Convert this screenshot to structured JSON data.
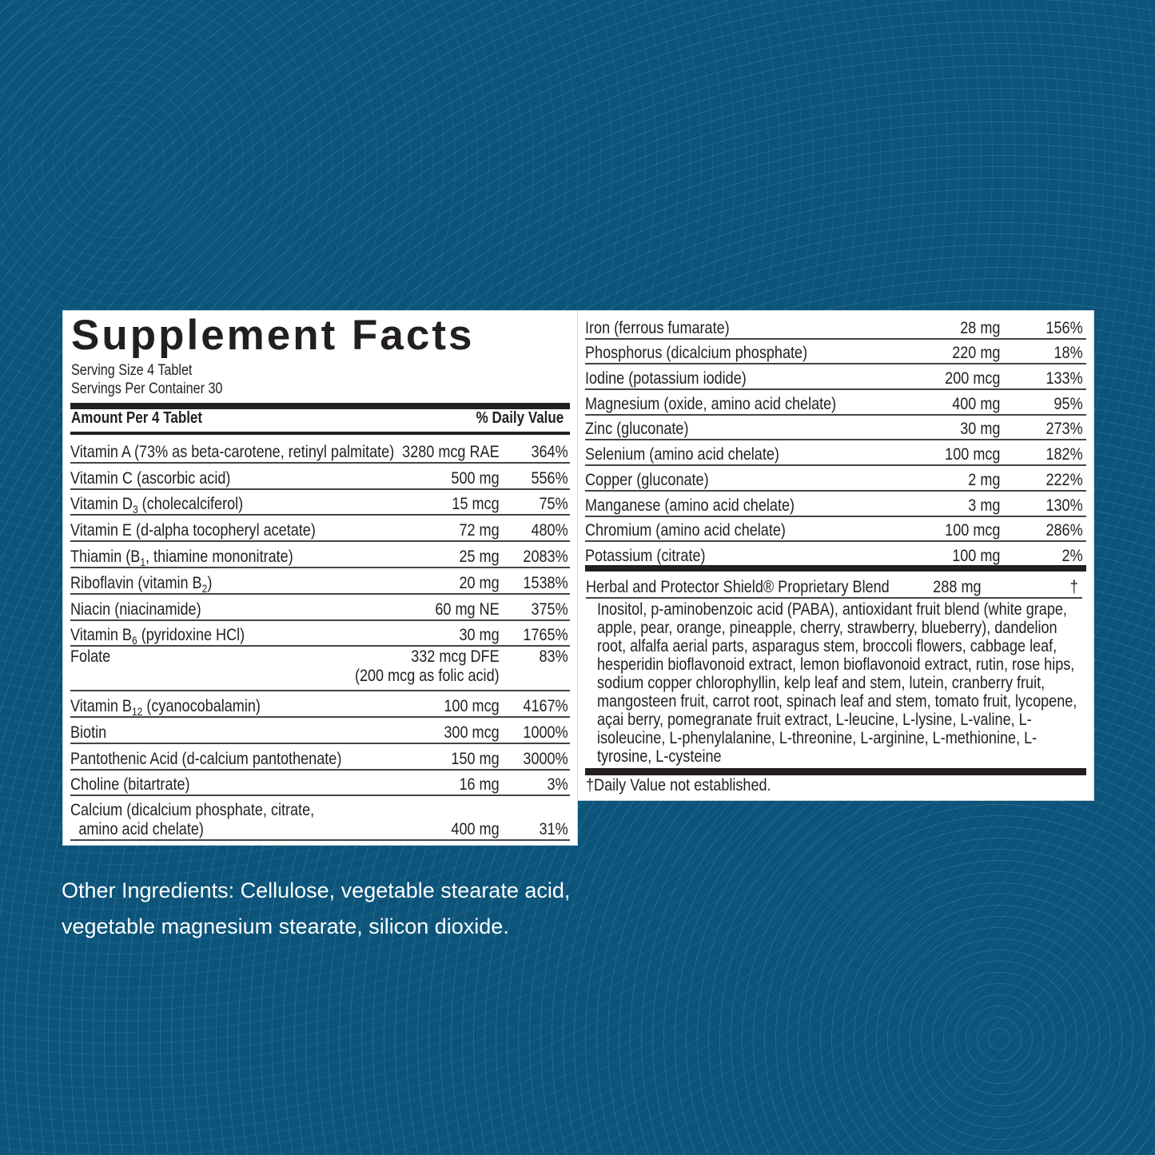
{
  "title": "Supplement Facts",
  "serving_size": "Serving Size 4 Tablet",
  "servings_per_container": "Servings Per Container 30",
  "header": {
    "amount": "Amount Per 4 Tablet",
    "dv": "% Daily Value"
  },
  "left_rows": [
    {
      "name": "Vitamin A (73% as beta-carotene, retinyl palmitate)",
      "amount": "3280 mcg RAE",
      "dv": "364%"
    },
    {
      "name": "Vitamin C (ascorbic acid)",
      "amount": "500 mg",
      "dv": "556%"
    },
    {
      "name": "Vitamin D",
      "sub": "3",
      "post": " (cholecalciferol)",
      "amount": "15 mcg",
      "dv": "75%"
    },
    {
      "name": "Vitamin E (d-alpha tocopheryl acetate)",
      "amount": "72 mg",
      "dv": "480%"
    },
    {
      "name": "Thiamin (B",
      "sub": "1",
      "post": ", thiamine mononitrate)",
      "amount": "25 mg",
      "dv": "2083%"
    },
    {
      "name": "Riboflavin (vitamin B",
      "sub": "2",
      "post": ")",
      "amount": "20 mg",
      "dv": "1538%"
    },
    {
      "name": "Niacin (niacinamide)",
      "amount": "60 mg NE",
      "dv": "375%"
    },
    {
      "name": "Vitamin B",
      "sub": "6",
      "post": " (pyridoxine HCl)",
      "amount": "30 mg",
      "dv": "1765%"
    },
    {
      "name": "Folate",
      "amount": "332 mcg DFE",
      "amount2": "(200 mcg as folic acid)",
      "dv": "83%"
    },
    {
      "name": "Vitamin B",
      "sub": "12",
      "post": " (cyanocobalamin)",
      "amount": "100 mcg",
      "dv": "4167%"
    },
    {
      "name": "Biotin",
      "amount": "300 mcg",
      "dv": "1000%"
    },
    {
      "name": "Pantothenic Acid (d-calcium pantothenate)",
      "amount": "150 mg",
      "dv": "3000%"
    },
    {
      "name": "Choline (bitartrate)",
      "amount": "16 mg",
      "dv": "3%"
    },
    {
      "name": "Calcium (dicalcium phosphate, citrate,",
      "name2": "amino acid chelate)",
      "amount": "400 mg",
      "dv": "31%"
    }
  ],
  "right_rows": [
    {
      "name": "Iron (ferrous fumarate)",
      "amount": "28 mg",
      "dv": "156%"
    },
    {
      "name": "Phosphorus (dicalcium phosphate)",
      "amount": "220 mg",
      "dv": "18%"
    },
    {
      "name": "Iodine (potassium iodide)",
      "amount": "200 mcg",
      "dv": "133%"
    },
    {
      "name": "Magnesium (oxide, amino acid chelate)",
      "amount": "400 mg",
      "dv": "95%"
    },
    {
      "name": "Zinc (gluconate)",
      "amount": "30 mg",
      "dv": "273%"
    },
    {
      "name": "Selenium (amino acid chelate)",
      "amount": "100 mcg",
      "dv": "182%"
    },
    {
      "name": "Copper (gluconate)",
      "amount": "2 mg",
      "dv": "222%"
    },
    {
      "name": "Manganese (amino acid chelate)",
      "amount": "3 mg",
      "dv": "130%"
    },
    {
      "name": "Chromium (amino acid chelate)",
      "amount": "100 mcg",
      "dv": "286%"
    },
    {
      "name": "Potassium (citrate)",
      "amount": "100 mg",
      "dv": "2%"
    }
  ],
  "blend": {
    "name": "Herbal and Protector Shield® Proprietary Blend",
    "amount": "288 mg",
    "dv": "†",
    "ingredients": "Inositol, p-aminobenzoic acid (PABA), antioxidant fruit blend (white grape, apple, pear, orange, pineapple, cherry, strawberry, blueberry), dandelion root, alfalfa aerial parts, asparagus stem, broccoli flowers, cabbage leaf, hesperidin bioflavonoid extract, lemon bioflavonoid extract, rutin, rose hips, sodium copper chlorophyllin, kelp leaf and stem, lutein, cranberry fruit, mangosteen fruit, carrot root, spinach leaf and stem, tomato fruit, lycopene, açai berry, pomegranate fruit extract, L-leucine, L-lysine, L-valine, L-isoleucine, L-phenylalanine, L-threonine, L-arginine, L-methionine, L-tyrosine, L-cysteine"
  },
  "footnote": "†Daily Value not established.",
  "other_ingredients_1": "Other Ingredients: Cellulose, vegetable stearate acid,",
  "other_ingredients_2": "vegetable magnesium stearate, silicon dioxide.",
  "colors": {
    "background": "#0c5479",
    "panel": "#ffffff",
    "text": "#231f20"
  }
}
